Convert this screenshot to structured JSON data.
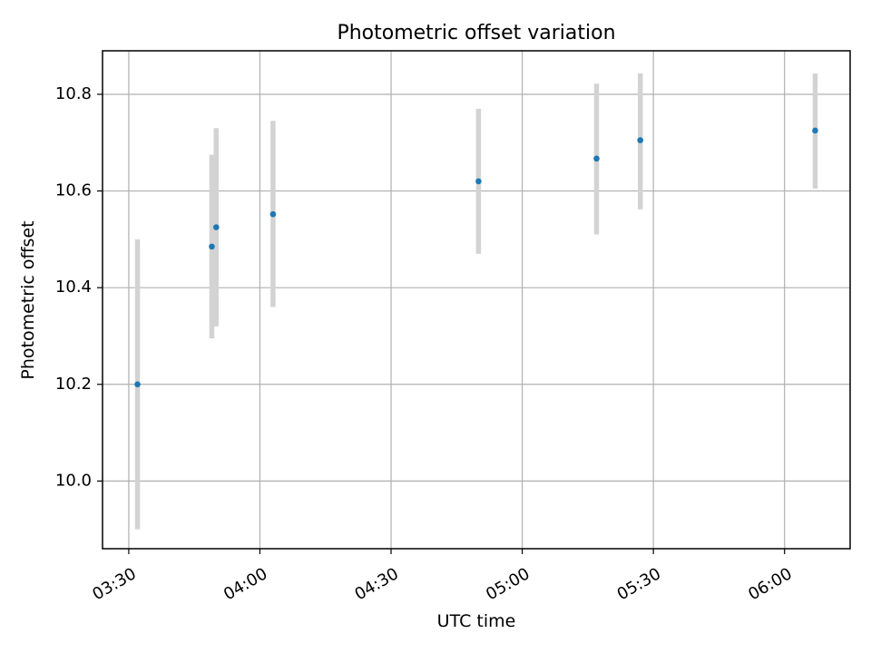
{
  "chart_data": {
    "type": "scatter",
    "title": "Photometric offset variation",
    "xlabel": "UTC time",
    "ylabel": "Photometric offset",
    "x_tick_labels": [
      "03:30",
      "04:00",
      "04:30",
      "05:00",
      "05:30",
      "06:00"
    ],
    "x_tick_minutes": [
      210,
      240,
      270,
      300,
      330,
      360
    ],
    "y_ticks": [
      10.0,
      10.2,
      10.4,
      10.6,
      10.8
    ],
    "y_tick_labels": [
      "10.0",
      "10.2",
      "10.4",
      "10.6",
      "10.8"
    ],
    "xlim": [
      "03:24",
      "06:15"
    ],
    "ylim": [
      9.86,
      10.89
    ],
    "grid": true,
    "marker_color": "#1f77b4",
    "errorbar_color": "#d3d3d3",
    "series": [
      {
        "points": [
          {
            "time": "03:32",
            "y": 10.2,
            "y_low": 9.9,
            "y_high": 10.5
          },
          {
            "time": "03:49",
            "y": 10.485,
            "y_low": 10.295,
            "y_high": 10.675
          },
          {
            "time": "03:50",
            "y": 10.525,
            "y_low": 10.32,
            "y_high": 10.73
          },
          {
            "time": "04:03",
            "y": 10.552,
            "y_low": 10.36,
            "y_high": 10.745
          },
          {
            "time": "04:50",
            "y": 10.62,
            "y_low": 10.47,
            "y_high": 10.77
          },
          {
            "time": "05:17",
            "y": 10.667,
            "y_low": 10.51,
            "y_high": 10.822
          },
          {
            "time": "05:27",
            "y": 10.705,
            "y_low": 10.562,
            "y_high": 10.843
          },
          {
            "time": "06:07",
            "y": 10.725,
            "y_low": 10.605,
            "y_high": 10.843
          }
        ]
      }
    ]
  }
}
